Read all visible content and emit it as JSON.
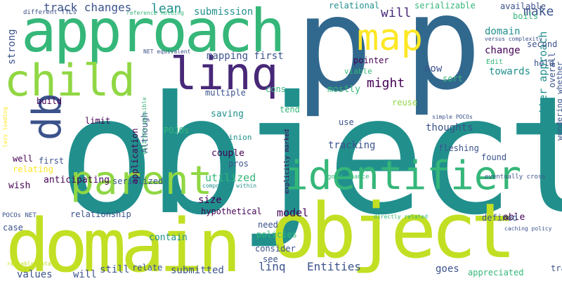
{
  "palette": {
    "teal": "#21908d",
    "green": "#35b779",
    "lime": "#c2df23",
    "yellow": "#fde725",
    "blue": "#31688e",
    "indigo": "#3b528b",
    "purple": "#482878",
    "dark": "#440154",
    "mint": "#5ec962",
    "light": "#90d743"
  },
  "words": [
    "object",
    "p",
    "domain",
    "approach",
    "object",
    "p",
    "parent",
    "identifier",
    "child",
    "linq",
    "db",
    "map",
    "lean",
    "track changes",
    "submission",
    "relational",
    "serializable",
    "make",
    "domain",
    "will",
    "mapping first",
    "strong",
    "change",
    "towards",
    "now",
    "pointer",
    "viable",
    "might",
    "thoughts",
    "tracking",
    "saving",
    "pros",
    "couple",
    "opinion",
    "utilized",
    "serialized",
    "size",
    "model",
    "relationship",
    "values",
    "will",
    "linq",
    "Entities",
    "submitted",
    "goes",
    "appreciated",
    "trade",
    "better approach",
    "able",
    "defined",
    "found",
    "fleshing",
    "overall",
    "held",
    "boils",
    "second",
    "available",
    "different TTLs",
    "reference holding",
    "NET equivalent",
    "versus complexity",
    "Edit",
    "mostly",
    "cons",
    "reuse",
    "tend",
    "use",
    "sort",
    "simple POCOs",
    "eventually cross",
    "wondering whether",
    "caching policy",
    "contain",
    "hypothetical",
    "need",
    "policies",
    "consider",
    "see",
    "still",
    "relate",
    "case",
    "reusable data",
    "POCOs NET",
    "lazy loading",
    "relating",
    "first",
    "well",
    "wish",
    "anticipating",
    "application",
    "Although",
    "entirely possible",
    "explicitly marked",
    "composite within",
    "directly related",
    "good chance",
    "limit",
    "POJOs",
    "build",
    "multiple",
    "first",
    "p"
  ]
}
